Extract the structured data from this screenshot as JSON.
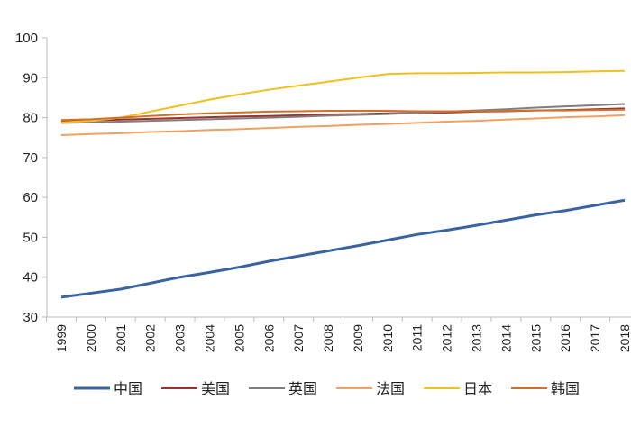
{
  "chart_data": {
    "type": "line",
    "title": "",
    "xlabel": "",
    "ylabel": "",
    "ylim": [
      30,
      100
    ],
    "yticks": [
      30,
      40,
      50,
      60,
      70,
      80,
      90,
      100
    ],
    "grid": false,
    "legend": "bottom",
    "categories": [
      "1999",
      "2000",
      "2001",
      "2002",
      "2003",
      "2004",
      "2005",
      "2006",
      "2007",
      "2008",
      "2009",
      "2010",
      "2011",
      "2012",
      "2013",
      "2014",
      "2015",
      "2016",
      "2017",
      "2018"
    ],
    "series": [
      {
        "name": "中国",
        "color": "#3a64a0",
        "values": [
          35,
          36,
          37,
          38.5,
          40,
          41.2,
          42.5,
          44,
          45.3,
          46.6,
          47.9,
          49.3,
          50.7,
          51.8,
          53,
          54.3,
          55.6,
          56.7,
          58,
          59.3
        ]
      },
      {
        "name": "美国",
        "color": "#a0302a",
        "values": [
          79.2,
          79.3,
          79.5,
          79.7,
          79.9,
          80.1,
          80.3,
          80.4,
          80.6,
          80.8,
          80.9,
          81.1,
          81.2,
          81.3,
          81.5,
          81.6,
          81.8,
          81.9,
          82.1,
          82.3
        ]
      },
      {
        "name": "英国",
        "color": "#7f7f7f",
        "values": [
          78.7,
          78.8,
          79,
          79.2,
          79.4,
          79.6,
          79.8,
          80,
          80.2,
          80.5,
          80.7,
          80.9,
          81.2,
          81.5,
          81.8,
          82.1,
          82.5,
          82.8,
          83.1,
          83.4
        ]
      },
      {
        "name": "法国",
        "color": "#f0a060",
        "values": [
          75.6,
          75.9,
          76.1,
          76.4,
          76.6,
          76.9,
          77.1,
          77.4,
          77.7,
          77.9,
          78.2,
          78.4,
          78.7,
          79,
          79.2,
          79.5,
          79.8,
          80.1,
          80.3,
          80.6
        ]
      },
      {
        "name": "日本",
        "color": "#f2c01e",
        "values": [
          78.8,
          79.2,
          80,
          81.5,
          83,
          84.5,
          85.8,
          87,
          88,
          89,
          90,
          90.9,
          91.1,
          91.1,
          91.2,
          91.3,
          91.3,
          91.4,
          91.6,
          91.7
        ]
      },
      {
        "name": "韩国",
        "color": "#d0702a",
        "values": [
          79.4,
          79.6,
          80,
          80.4,
          80.8,
          81.1,
          81.3,
          81.5,
          81.6,
          81.7,
          81.7,
          81.7,
          81.6,
          81.6,
          81.6,
          81.7,
          81.8,
          81.8,
          81.9,
          82
        ]
      }
    ]
  }
}
